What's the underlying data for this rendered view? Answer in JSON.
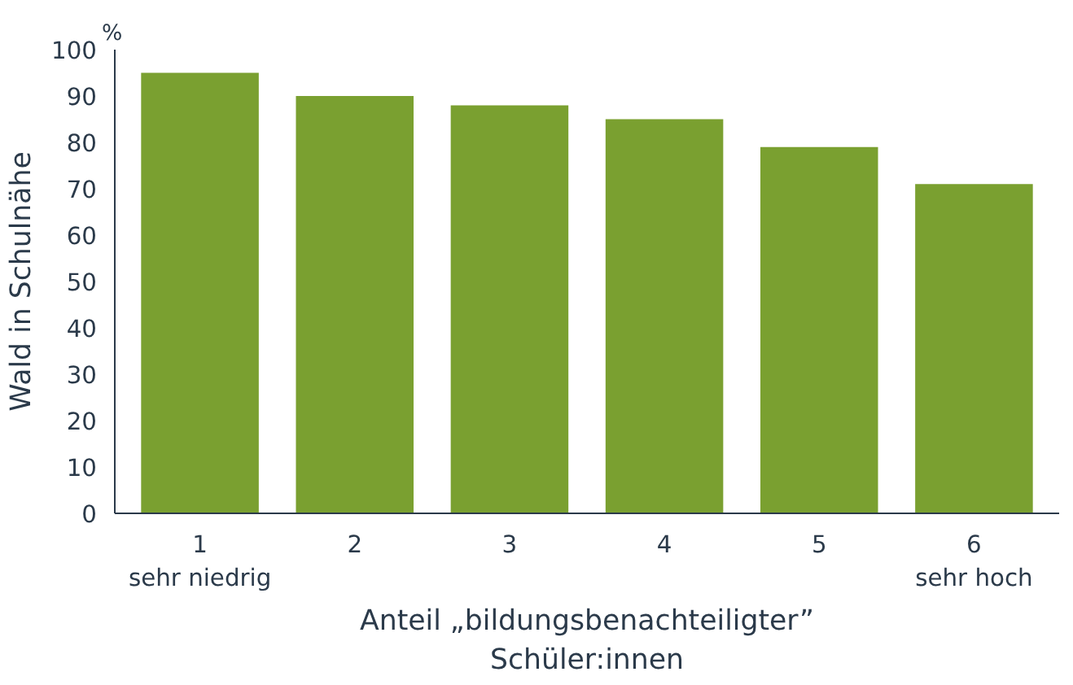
{
  "chart_data": {
    "type": "bar",
    "categories": [
      "1\nsehr niedrig",
      "2",
      "3",
      "4",
      "5",
      "6\nsehr hoch"
    ],
    "values": [
      95,
      90,
      88,
      85,
      79,
      71
    ],
    "color": "#7aa030",
    "xlabel": "Anteil „bildungsbenachteiligter”\nSchüler:innen",
    "ylabel": "Wald in Schulnähe",
    "annotations": [
      "%"
    ],
    "ylim": [
      0,
      100
    ],
    "yticks": [
      0,
      10,
      20,
      30,
      40,
      50,
      60,
      70,
      80,
      90,
      100
    ],
    "grid": false
  }
}
